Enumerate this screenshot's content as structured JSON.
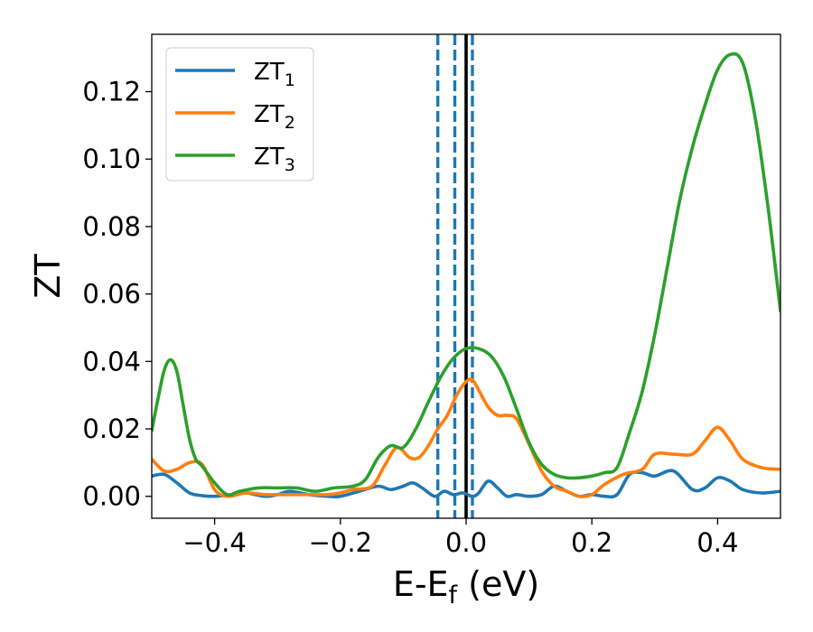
{
  "chart_data": {
    "type": "line",
    "xlabel": "E-E",
    "xlabel_sub": "f",
    "xlabel_unit": " (eV)",
    "ylabel": "ZT",
    "xlim": [
      -0.5,
      0.5
    ],
    "ylim": [
      -0.0065,
      0.137
    ],
    "xticks": [
      -0.4,
      -0.2,
      0.0,
      0.2,
      0.4
    ],
    "xtick_labels": [
      "−0.4",
      "−0.2",
      "0.0",
      "0.2",
      "0.4"
    ],
    "yticks": [
      0.0,
      0.02,
      0.04,
      0.06,
      0.08,
      0.1,
      0.12
    ],
    "ytick_labels": [
      "0.00",
      "0.02",
      "0.04",
      "0.06",
      "0.08",
      "0.10",
      "0.12"
    ],
    "grid": false,
    "legend_position": "top-left",
    "vertical_lines": [
      {
        "x": 0.0,
        "style": "solid",
        "color": "#000000"
      },
      {
        "x": -0.045,
        "style": "dashed",
        "color": "#1f77b4"
      },
      {
        "x": -0.018,
        "style": "dashed",
        "color": "#1f77b4"
      },
      {
        "x": 0.01,
        "style": "dashed",
        "color": "#1f77b4"
      }
    ],
    "series": [
      {
        "name": "ZT",
        "name_sub": "1",
        "color": "#1f77b4",
        "points": [
          [
            -0.5,
            0.006
          ],
          [
            -0.48,
            0.0065
          ],
          [
            -0.46,
            0.004
          ],
          [
            -0.44,
            0.001
          ],
          [
            -0.42,
            0.0002
          ],
          [
            -0.4,
            0.0
          ],
          [
            -0.37,
            0.0005
          ],
          [
            -0.35,
            0.001
          ],
          [
            -0.32,
            0.0
          ],
          [
            -0.3,
            0.0005
          ],
          [
            -0.28,
            0.0015
          ],
          [
            -0.25,
            0.0005
          ],
          [
            -0.22,
            0.0
          ],
          [
            -0.2,
            0.0
          ],
          [
            -0.17,
            0.0015
          ],
          [
            -0.14,
            0.003
          ],
          [
            -0.12,
            0.002
          ],
          [
            -0.1,
            0.003
          ],
          [
            -0.085,
            0.004
          ],
          [
            -0.07,
            0.0025
          ],
          [
            -0.05,
            0.0
          ],
          [
            -0.035,
            0.0015
          ],
          [
            -0.02,
            0.0005
          ],
          [
            -0.005,
            0.001
          ],
          [
            0.01,
            0.0
          ],
          [
            0.02,
            0.001
          ],
          [
            0.035,
            0.0045
          ],
          [
            0.05,
            0.0025
          ],
          [
            0.065,
            0.0
          ],
          [
            0.08,
            0.0005
          ],
          [
            0.1,
            0.0
          ],
          [
            0.12,
            0.0005
          ],
          [
            0.14,
            0.003
          ],
          [
            0.16,
            0.0015
          ],
          [
            0.18,
            0.0
          ],
          [
            0.2,
            0.0005
          ],
          [
            0.22,
            0.0
          ],
          [
            0.24,
            0.0005
          ],
          [
            0.26,
            0.0065
          ],
          [
            0.28,
            0.007
          ],
          [
            0.3,
            0.006
          ],
          [
            0.33,
            0.0075
          ],
          [
            0.36,
            0.002
          ],
          [
            0.38,
            0.0025
          ],
          [
            0.4,
            0.0055
          ],
          [
            0.42,
            0.0045
          ],
          [
            0.44,
            0.002
          ],
          [
            0.47,
            0.001
          ],
          [
            0.5,
            0.0015
          ]
        ]
      },
      {
        "name": "ZT",
        "name_sub": "2",
        "color": "#ff7f0e",
        "points": [
          [
            -0.5,
            0.011
          ],
          [
            -0.48,
            0.0075
          ],
          [
            -0.46,
            0.008
          ],
          [
            -0.44,
            0.01
          ],
          [
            -0.42,
            0.0095
          ],
          [
            -0.4,
            0.002
          ],
          [
            -0.38,
            0.0
          ],
          [
            -0.35,
            0.001
          ],
          [
            -0.32,
            0.0005
          ],
          [
            -0.3,
            0.0005
          ],
          [
            -0.28,
            0.0005
          ],
          [
            -0.25,
            0.0005
          ],
          [
            -0.22,
            0.0005
          ],
          [
            -0.2,
            0.001
          ],
          [
            -0.18,
            0.002
          ],
          [
            -0.15,
            0.003
          ],
          [
            -0.13,
            0.009
          ],
          [
            -0.11,
            0.0145
          ],
          [
            -0.09,
            0.0115
          ],
          [
            -0.075,
            0.0115
          ],
          [
            -0.06,
            0.015
          ],
          [
            -0.045,
            0.02
          ],
          [
            -0.03,
            0.024
          ],
          [
            -0.015,
            0.03
          ],
          [
            0.0,
            0.034
          ],
          [
            0.01,
            0.0345
          ],
          [
            0.02,
            0.0315
          ],
          [
            0.035,
            0.0265
          ],
          [
            0.05,
            0.024
          ],
          [
            0.065,
            0.024
          ],
          [
            0.08,
            0.023
          ],
          [
            0.1,
            0.0155
          ],
          [
            0.12,
            0.0075
          ],
          [
            0.14,
            0.003
          ],
          [
            0.16,
            0.0015
          ],
          [
            0.18,
            0.0
          ],
          [
            0.2,
            0.0005
          ],
          [
            0.22,
            0.0035
          ],
          [
            0.25,
            0.0065
          ],
          [
            0.28,
            0.008
          ],
          [
            0.3,
            0.0125
          ],
          [
            0.33,
            0.0125
          ],
          [
            0.36,
            0.0125
          ],
          [
            0.38,
            0.0165
          ],
          [
            0.4,
            0.0205
          ],
          [
            0.42,
            0.0165
          ],
          [
            0.44,
            0.011
          ],
          [
            0.47,
            0.0085
          ],
          [
            0.5,
            0.008
          ]
        ]
      },
      {
        "name": "ZT",
        "name_sub": "3",
        "color": "#2ca02c",
        "points": [
          [
            -0.5,
            0.0195
          ],
          [
            -0.49,
            0.029
          ],
          [
            -0.48,
            0.0375
          ],
          [
            -0.47,
            0.0405
          ],
          [
            -0.46,
            0.037
          ],
          [
            -0.45,
            0.027
          ],
          [
            -0.44,
            0.017
          ],
          [
            -0.43,
            0.011
          ],
          [
            -0.42,
            0.009
          ],
          [
            -0.4,
            0.004
          ],
          [
            -0.38,
            0.0005
          ],
          [
            -0.36,
            0.0015
          ],
          [
            -0.33,
            0.0025
          ],
          [
            -0.3,
            0.0025
          ],
          [
            -0.27,
            0.0025
          ],
          [
            -0.24,
            0.0015
          ],
          [
            -0.21,
            0.0025
          ],
          [
            -0.18,
            0.003
          ],
          [
            -0.16,
            0.005
          ],
          [
            -0.14,
            0.0115
          ],
          [
            -0.12,
            0.015
          ],
          [
            -0.1,
            0.0145
          ],
          [
            -0.08,
            0.02
          ],
          [
            -0.06,
            0.028
          ],
          [
            -0.04,
            0.0355
          ],
          [
            -0.02,
            0.041
          ],
          [
            0.0,
            0.0438
          ],
          [
            0.02,
            0.0438
          ],
          [
            0.04,
            0.0415
          ],
          [
            0.06,
            0.0355
          ],
          [
            0.08,
            0.026
          ],
          [
            0.1,
            0.016
          ],
          [
            0.12,
            0.0095
          ],
          [
            0.14,
            0.0065
          ],
          [
            0.16,
            0.0055
          ],
          [
            0.18,
            0.0055
          ],
          [
            0.2,
            0.006
          ],
          [
            0.22,
            0.007
          ],
          [
            0.24,
            0.0085
          ],
          [
            0.26,
            0.019
          ],
          [
            0.28,
            0.031
          ],
          [
            0.3,
            0.048
          ],
          [
            0.32,
            0.068
          ],
          [
            0.34,
            0.088
          ],
          [
            0.36,
            0.1035
          ],
          [
            0.38,
            0.116
          ],
          [
            0.4,
            0.1265
          ],
          [
            0.42,
            0.131
          ],
          [
            0.44,
            0.1285
          ],
          [
            0.46,
            0.112
          ],
          [
            0.48,
            0.086
          ],
          [
            0.5,
            0.055
          ]
        ]
      }
    ]
  }
}
